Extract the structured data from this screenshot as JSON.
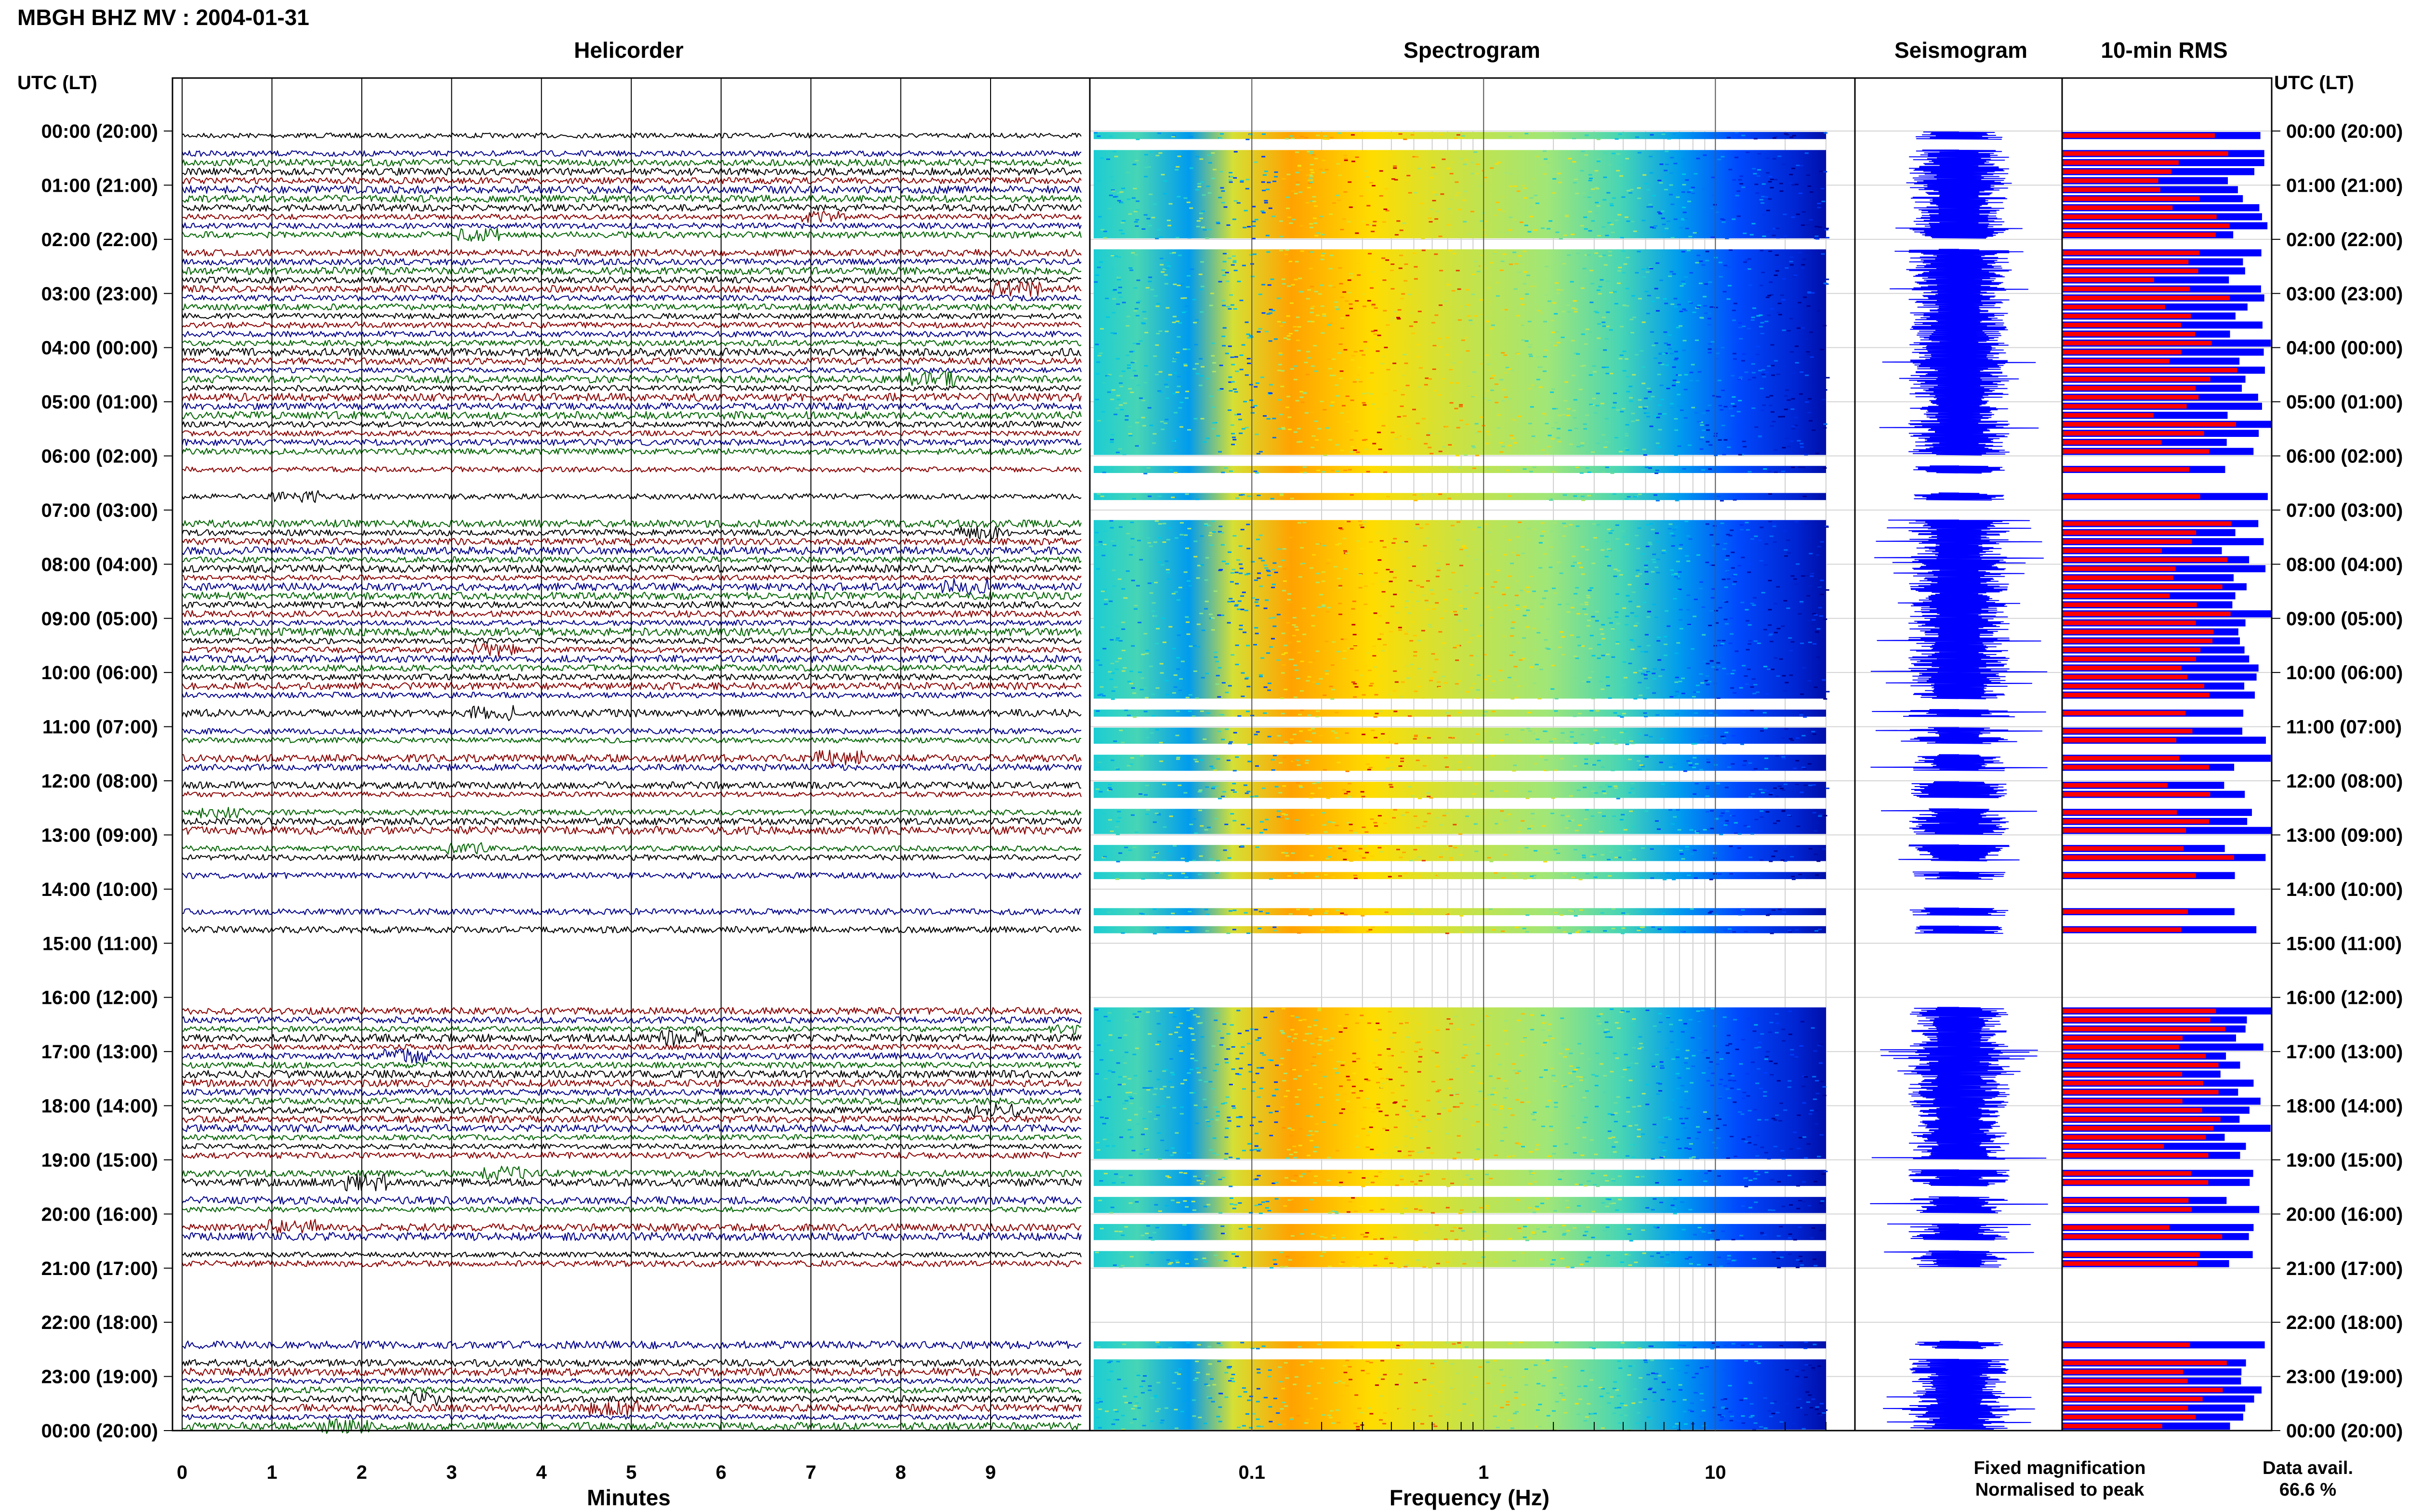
{
  "header": {
    "title": "MBGH BHZ MV : 2004-01-31"
  },
  "panels": {
    "helicorder": "Helicorder",
    "spectrogram": "Spectrogram",
    "seismogram": "Seismogram",
    "rms": "10-min RMS"
  },
  "axes": {
    "time_label": "UTC (LT)",
    "x_label_helicorder": "Minutes",
    "x_label_spectrogram": "Frequency (Hz)",
    "minute_ticks": [
      "0",
      "1",
      "2",
      "3",
      "4",
      "5",
      "6",
      "7",
      "8",
      "9"
    ],
    "freq_ticks": [
      "0.1",
      "1",
      "10"
    ]
  },
  "time_labels": [
    "00:00 (20:00)",
    "01:00 (21:00)",
    "02:00 (22:00)",
    "03:00 (23:00)",
    "04:00 (00:00)",
    "05:00 (01:00)",
    "06:00 (02:00)",
    "07:00 (03:00)",
    "08:00 (04:00)",
    "09:00 (05:00)",
    "10:00 (06:00)",
    "11:00 (07:00)",
    "12:00 (08:00)",
    "13:00 (09:00)",
    "14:00 (10:00)",
    "15:00 (11:00)",
    "16:00 (12:00)",
    "17:00 (13:00)",
    "18:00 (14:00)",
    "19:00 (15:00)",
    "20:00 (16:00)",
    "21:00 (17:00)",
    "22:00 (18:00)",
    "23:00 (19:00)",
    "00:00 (20:00)"
  ],
  "legend": {
    "fixed": "Fixed magnification",
    "normalised": "Normalised to peak",
    "avail_label": "Data avail.",
    "avail_value": "66.6 %",
    "fixed_color": "#0000ff",
    "normalised_color": "#ff0000"
  },
  "chart_data": {
    "type": "heatmap",
    "title": "MBGH BHZ MV : 2004-01-31",
    "x_minutes_range": [
      0,
      10
    ],
    "freq_range_hz": [
      0.02,
      40
    ],
    "freq_scale": "log",
    "helicorder_colors": [
      "#000000",
      "#8b0000",
      "#00008b",
      "#006400"
    ],
    "data_availability_percent": 66.6,
    "segment_present": [
      1,
      0,
      1,
      1,
      1,
      1,
      1,
      1,
      1,
      1,
      1,
      1,
      0,
      1,
      1,
      1,
      1,
      1,
      1,
      1,
      1,
      1,
      1,
      1,
      1,
      1,
      1,
      1,
      1,
      1,
      1,
      1,
      1,
      1,
      1,
      1,
      0,
      1,
      0,
      0,
      1,
      0,
      0,
      1,
      1,
      1,
      1,
      1,
      1,
      1,
      1,
      1,
      1,
      1,
      1,
      1,
      1,
      1,
      1,
      1,
      1,
      1,
      1,
      0,
      1,
      0,
      1,
      1,
      0,
      1,
      1,
      0,
      1,
      1,
      0,
      1,
      1,
      1,
      0,
      1,
      1,
      0,
      1,
      0,
      0,
      0,
      1,
      0,
      1,
      0,
      0,
      0,
      0,
      0,
      0,
      0,
      0,
      1,
      1,
      1,
      1,
      1,
      1,
      1,
      1,
      1,
      1,
      1,
      1,
      1,
      1,
      1,
      1,
      1,
      0,
      1,
      1,
      0,
      1,
      1,
      0,
      1,
      1,
      0,
      1,
      1,
      0,
      0,
      0,
      0,
      0,
      0,
      0,
      0,
      1,
      0,
      1,
      1,
      1,
      1,
      1,
      1,
      1,
      1
    ]
  }
}
